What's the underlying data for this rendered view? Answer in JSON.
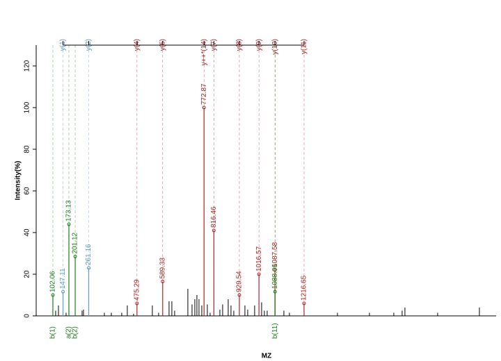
{
  "chart_data": {
    "type": "spectrum",
    "x_label": "MZ",
    "y_label": "Intensity(%)",
    "xlim": [
      28,
      2069
    ],
    "ylim": [
      0,
      130
    ],
    "yticks": [
      0,
      20,
      40,
      60,
      80,
      100,
      120
    ],
    "peaks": {
      "mz": [
        114.4,
        126.8,
        160.7,
        231.7,
        237.9,
        330.5,
        361.4,
        407.7,
        432.4,
        460.2,
        543.5,
        571.3,
        617.6,
        630.0,
        642.3,
        701.0,
        719.6,
        731.9,
        741.1,
        750.4,
        762.8,
        787.5,
        799.8,
        843.1,
        855.4,
        880.1,
        892.4,
        904.8,
        954.2,
        966.5,
        997.4,
        1028.3,
        1040.6,
        1053.0,
        1127.1,
        1151.8,
        1364.8,
        1506.8,
        1614.9,
        1651.9,
        1664.3,
        1809.4,
        1994.7
      ],
      "intensity": [
        2.5,
        5,
        1.5,
        2.5,
        3,
        1.5,
        1.5,
        1.5,
        5,
        1,
        5,
        1.5,
        7,
        7,
        2.5,
        13,
        5.5,
        8,
        10,
        8,
        5,
        5.5,
        1.5,
        3,
        5.5,
        8,
        5,
        2.5,
        5,
        3,
        5,
        6.5,
        2.5,
        2.5,
        2.5,
        1.5,
        1.5,
        1.5,
        1.5,
        2.5,
        4,
        1.5,
        4
      ]
    },
    "annotated": [
      {
        "mz": 102.06,
        "intensity": 10,
        "color": "#1a7f1a",
        "ion": "b(1)",
        "ion_side": "bottom"
      },
      {
        "mz": 147.11,
        "intensity": 11.6,
        "color": "#5b9bd5",
        "ion": "y(1)",
        "ion_side": "top"
      },
      {
        "mz": 173.13,
        "intensity": 44,
        "color": "#1a7f1a",
        "ion": "a(2)",
        "ion_side": "bottom"
      },
      {
        "mz": 201.12,
        "intensity": 28.5,
        "color": "#1a7f1a",
        "ion": "b(2)",
        "ion_side": "bottom"
      },
      {
        "mz": 261.16,
        "intensity": 23,
        "color": "#5b9bd5",
        "ion": "y(2)",
        "ion_side": "top"
      },
      {
        "mz": 475.29,
        "intensity": 6,
        "color": "#b22222",
        "ion": "y(4)",
        "ion_side": "top"
      },
      {
        "mz": 589.33,
        "intensity": 16.5,
        "color": "#b22222",
        "ion": "y(5)",
        "ion_side": "top"
      },
      {
        "mz": 772.87,
        "intensity": 100,
        "color": "#b22222",
        "ion": "y++*(14)",
        "ion_side": "top"
      },
      {
        "mz": 816.46,
        "intensity": 41,
        "color": "#b22222",
        "ion": "y(7)",
        "ion_side": "top"
      },
      {
        "mz": 929.54,
        "intensity": 10,
        "color": "#b22222",
        "ion": "y(8)",
        "ion_side": "top"
      },
      {
        "mz": 1016.57,
        "intensity": 20,
        "color": "#b22222",
        "ion": "y(9)",
        "ion_side": "top"
      },
      {
        "mz": 1087.58,
        "intensity": 22,
        "color": "#b22222",
        "ion": "y(10)",
        "ion_side": "top"
      },
      {
        "mz": 1088.06,
        "intensity": 11.6,
        "color": "#1a7f1a",
        "ion": "b(11)",
        "ion_side": "bottom"
      },
      {
        "mz": 1216.65,
        "intensity": 6,
        "color": "#b22222",
        "ion": "y(11)",
        "ion_side": "top"
      }
    ]
  }
}
